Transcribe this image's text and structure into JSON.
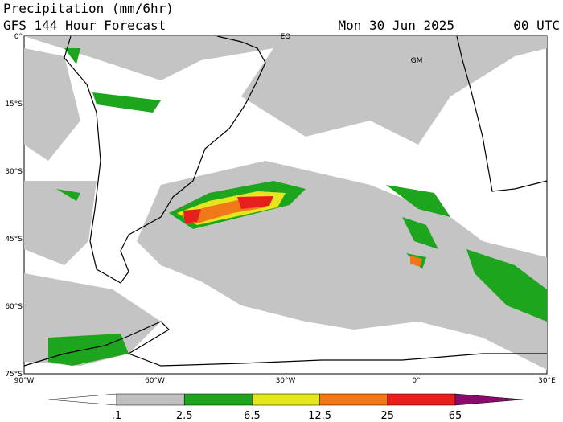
{
  "header": {
    "title": "Precipitation (mm/6hr)",
    "subtitle": "GFS 144 Hour Forecast",
    "date": "Mon 30 Jun 2025",
    "time": "00 UTC"
  },
  "map": {
    "lat_labels": [
      "0°",
      "15°S",
      "30°S",
      "45°S",
      "60°S",
      "75°S"
    ],
    "lon_labels": [
      "90°W",
      "60°W",
      "30°W",
      "0°",
      "30°E"
    ],
    "annotations": [
      "EQ",
      "GM"
    ]
  },
  "colorbar": {
    "labels": [
      ".1",
      "2.5",
      "6.5",
      "12.5",
      "25",
      "65"
    ],
    "colors": [
      "#ffffff",
      "#c0c0c0",
      "#1ea51e",
      "#e6e61e",
      "#f07818",
      "#e61e1e",
      "#8c0a6e"
    ]
  }
}
